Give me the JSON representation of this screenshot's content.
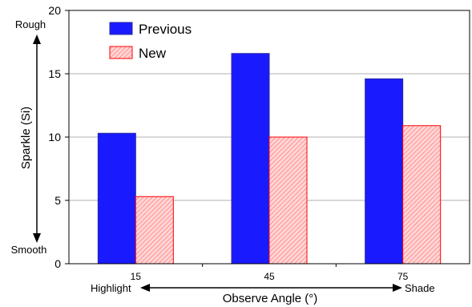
{
  "chart_data": {
    "type": "bar",
    "categories": [
      "15",
      "45",
      "75"
    ],
    "series": [
      {
        "name": "Previous",
        "values": [
          10.3,
          16.6,
          14.6
        ],
        "color": "#1a1aff",
        "fill": "solid"
      },
      {
        "name": "New",
        "values": [
          5.3,
          10.0,
          10.9
        ],
        "color": "#ff0000",
        "fill": "hatched-pink"
      }
    ],
    "ylim": [
      0,
      20
    ],
    "yticks": [
      0,
      5,
      10,
      15,
      20
    ],
    "xlabel": "Observe Angle (°)",
    "ylabel": "Sparkle (Si)",
    "y_annotations": {
      "top": "Rough",
      "bottom": "Smooth"
    },
    "x_annotations": {
      "left": "Highlight",
      "right": "Shade"
    },
    "grid": "horizontal",
    "legend_position": "top-left"
  }
}
